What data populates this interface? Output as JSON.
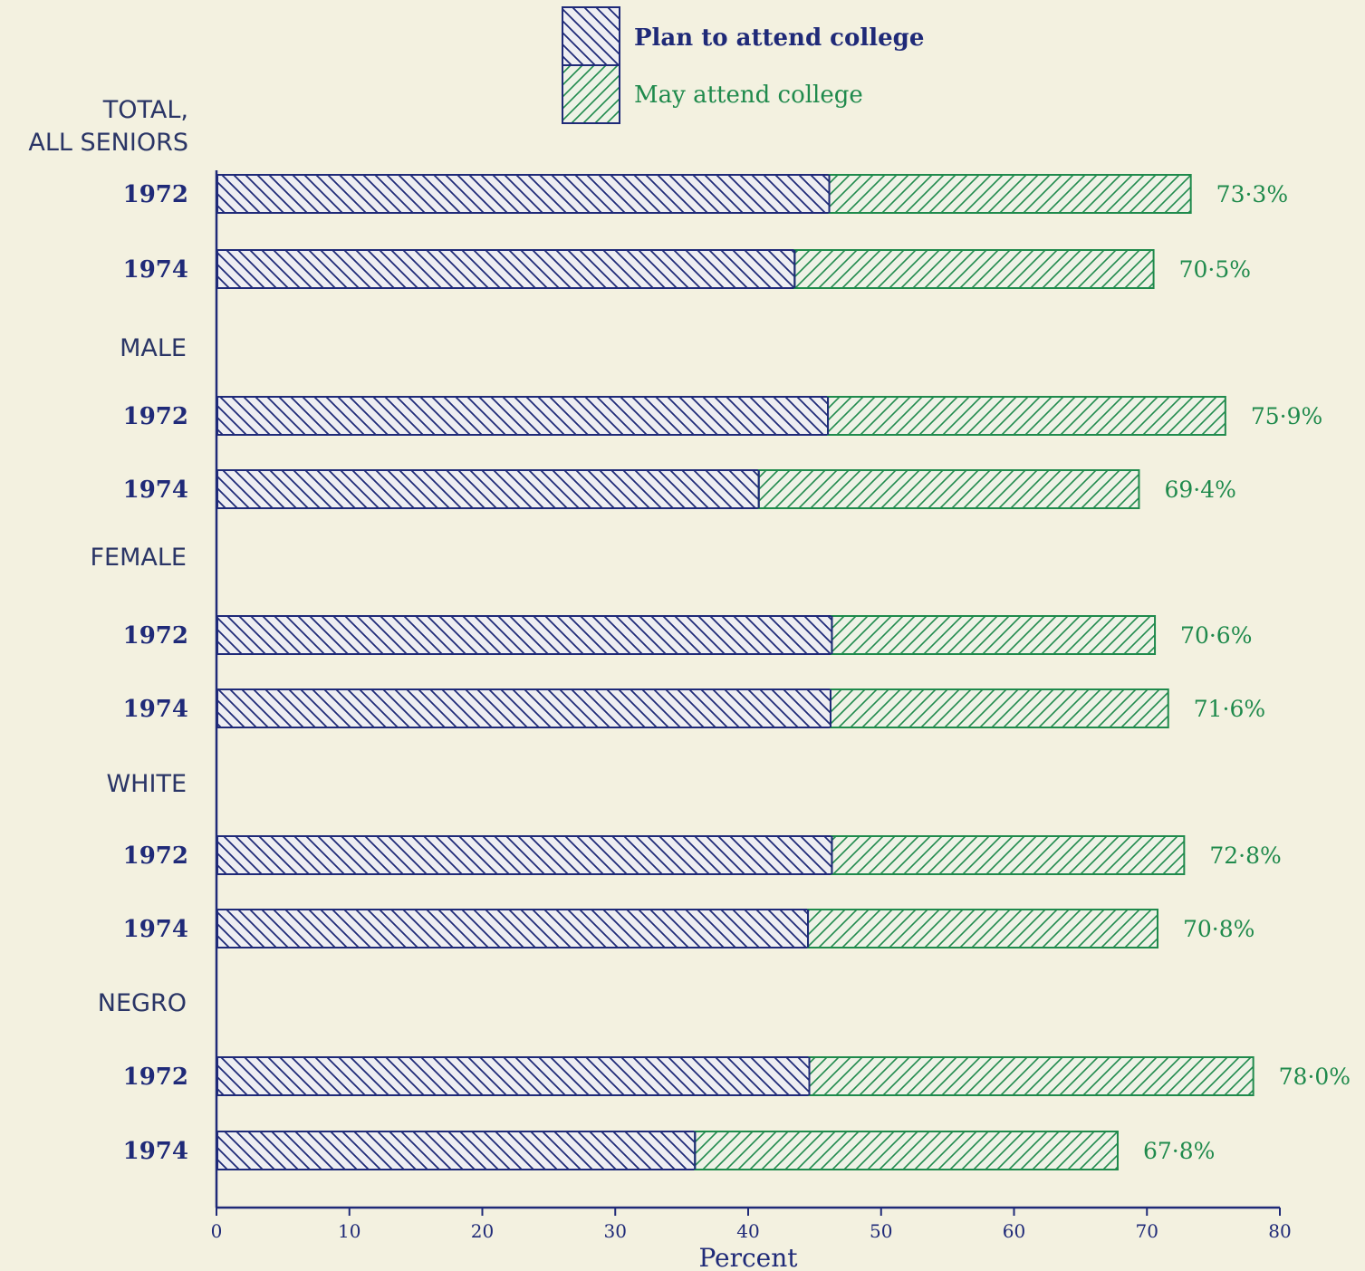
{
  "chart_data": {
    "type": "bar",
    "orientation": "horizontal",
    "stacked": true,
    "xlabel": "Percent",
    "xlim": [
      0,
      80
    ],
    "xticks": [
      0,
      10,
      20,
      30,
      40,
      50,
      60,
      70,
      80
    ],
    "grid": false,
    "legend_position": "top-center",
    "series": [
      {
        "name": "Plan to attend college",
        "color": "#1f2a78",
        "pattern": "backslash-hatch"
      },
      {
        "name": "May attend college",
        "color": "#1f8a4c",
        "pattern": "slash-hatch"
      }
    ],
    "groups": [
      {
        "label": "TOTAL,\nALL SENIORS",
        "rows": [
          {
            "year": "1972",
            "plan": 46.1,
            "may": 27.2,
            "total_label": "73·3%"
          },
          {
            "year": "1974",
            "plan": 43.5,
            "may": 27.0,
            "total_label": "70·5%"
          }
        ]
      },
      {
        "label": "MALE",
        "rows": [
          {
            "year": "1972",
            "plan": 46.0,
            "may": 29.9,
            "total_label": "75·9%"
          },
          {
            "year": "1974",
            "plan": 40.8,
            "may": 28.6,
            "total_label": "69·4%"
          }
        ]
      },
      {
        "label": "FEMALE",
        "rows": [
          {
            "year": "1972",
            "plan": 46.3,
            "may": 24.3,
            "total_label": "70·6%"
          },
          {
            "year": "1974",
            "plan": 46.2,
            "may": 25.4,
            "total_label": "71·6%"
          }
        ]
      },
      {
        "label": "WHITE",
        "rows": [
          {
            "year": "1972",
            "plan": 46.3,
            "may": 26.5,
            "total_label": "72·8%"
          },
          {
            "year": "1974",
            "plan": 44.5,
            "may": 26.3,
            "total_label": "70·8%"
          }
        ]
      },
      {
        "label": "NEGRO",
        "rows": [
          {
            "year": "1972",
            "plan": 44.6,
            "may": 33.4,
            "total_label": "78·0%"
          },
          {
            "year": "1974",
            "plan": 36.0,
            "may": 31.8,
            "total_label": "67·8%"
          }
        ]
      }
    ]
  }
}
